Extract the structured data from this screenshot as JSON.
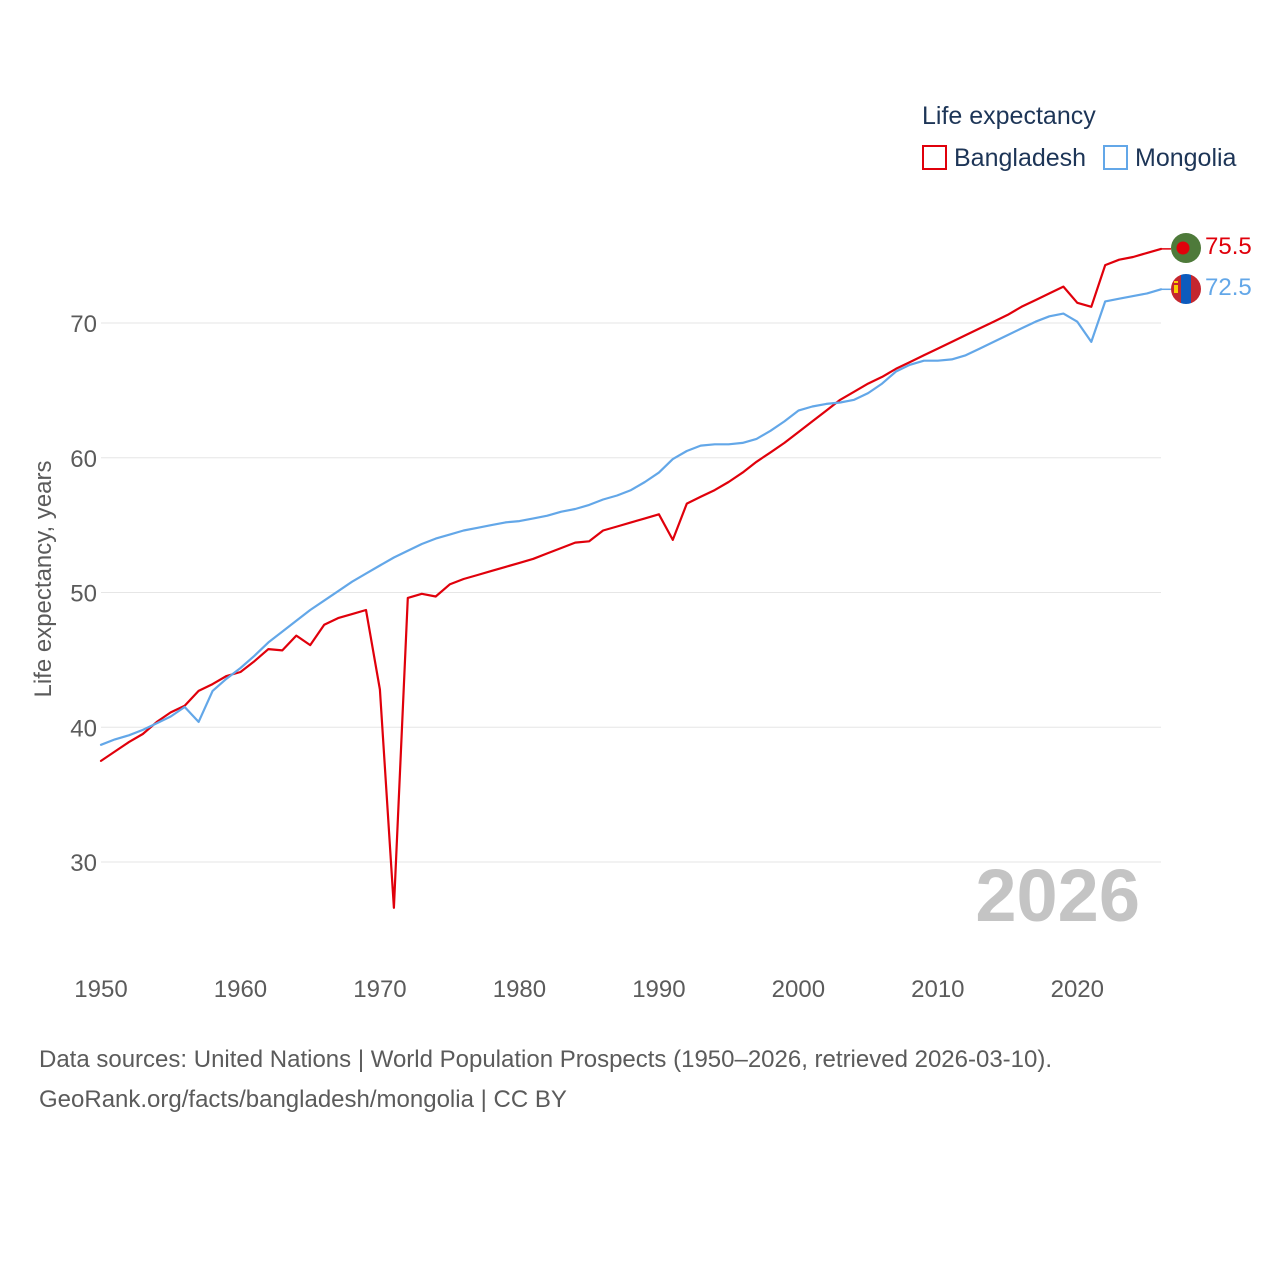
{
  "chart_data": {
    "type": "line",
    "ylabel": "Life expectancy, years",
    "xlabel": "",
    "xlim": [
      1950,
      2026
    ],
    "ylim": [
      24.5,
      78
    ],
    "x_ticks": [
      1950,
      1960,
      1970,
      1980,
      1990,
      2000,
      2010,
      2020
    ],
    "y_ticks": [
      30,
      40,
      50,
      60,
      70
    ],
    "grid": true,
    "legend": {
      "title": "Life expectancy",
      "position": "top-right"
    },
    "year_watermark": "2026",
    "x": [
      1950,
      1951,
      1952,
      1953,
      1954,
      1955,
      1956,
      1957,
      1958,
      1959,
      1960,
      1961,
      1962,
      1963,
      1964,
      1965,
      1966,
      1967,
      1968,
      1969,
      1970,
      1971,
      1972,
      1973,
      1974,
      1975,
      1976,
      1977,
      1978,
      1979,
      1980,
      1981,
      1982,
      1983,
      1984,
      1985,
      1986,
      1987,
      1988,
      1989,
      1990,
      1991,
      1992,
      1993,
      1994,
      1995,
      1996,
      1997,
      1998,
      1999,
      2000,
      2001,
      2002,
      2003,
      2004,
      2005,
      2006,
      2007,
      2008,
      2009,
      2010,
      2011,
      2012,
      2013,
      2014,
      2015,
      2016,
      2017,
      2018,
      2019,
      2020,
      2021,
      2022,
      2023,
      2024,
      2025,
      2026
    ],
    "series": [
      {
        "name": "Bangladesh",
        "color": "#e0000b",
        "end_label": "75.5",
        "flag_icon": "bangladesh-flag-icon",
        "values": [
          37.5,
          38.2,
          38.9,
          39.5,
          40.4,
          41.1,
          41.6,
          42.7,
          43.2,
          43.8,
          44.1,
          44.9,
          45.8,
          45.7,
          46.8,
          46.1,
          47.6,
          48.1,
          48.4,
          48.7,
          42.8,
          26.6,
          49.6,
          49.9,
          49.7,
          50.6,
          51.0,
          51.3,
          51.6,
          51.9,
          52.2,
          52.5,
          52.9,
          53.3,
          53.7,
          53.8,
          54.6,
          54.9,
          55.2,
          55.5,
          55.8,
          53.9,
          56.6,
          57.1,
          57.6,
          58.2,
          58.9,
          59.7,
          60.4,
          61.1,
          61.9,
          62.7,
          63.5,
          64.3,
          64.9,
          65.5,
          66.0,
          66.6,
          67.1,
          67.6,
          68.1,
          68.6,
          69.1,
          69.6,
          70.1,
          70.6,
          71.2,
          71.7,
          72.2,
          72.7,
          71.5,
          71.2,
          74.3,
          74.7,
          74.9,
          75.2,
          75.5
        ]
      },
      {
        "name": "Mongolia",
        "color": "#63a7e8",
        "end_label": "72.5",
        "flag_icon": "mongolia-flag-icon",
        "values": [
          38.7,
          39.1,
          39.4,
          39.8,
          40.3,
          40.8,
          41.5,
          40.4,
          42.7,
          43.6,
          44.4,
          45.3,
          46.3,
          47.1,
          47.9,
          48.7,
          49.4,
          50.1,
          50.8,
          51.4,
          52.0,
          52.6,
          53.1,
          53.6,
          54.0,
          54.3,
          54.6,
          54.8,
          55.0,
          55.2,
          55.3,
          55.5,
          55.7,
          56.0,
          56.2,
          56.5,
          56.9,
          57.2,
          57.6,
          58.2,
          58.9,
          59.9,
          60.5,
          60.9,
          61.0,
          61.0,
          61.1,
          61.4,
          62.0,
          62.7,
          63.5,
          63.8,
          64.0,
          64.1,
          64.3,
          64.8,
          65.5,
          66.4,
          66.9,
          67.2,
          67.2,
          67.3,
          67.6,
          68.1,
          68.6,
          69.1,
          69.6,
          70.1,
          70.5,
          70.7,
          70.1,
          68.6,
          71.6,
          71.8,
          72.0,
          72.2,
          72.5
        ]
      }
    ]
  },
  "source_line_1": "Data sources: United Nations | World Population Prospects (1950–2026, retrieved 2026-03-10).",
  "source_line_2": "GeoRank.org/facts/bangladesh/mongolia | CC BY"
}
